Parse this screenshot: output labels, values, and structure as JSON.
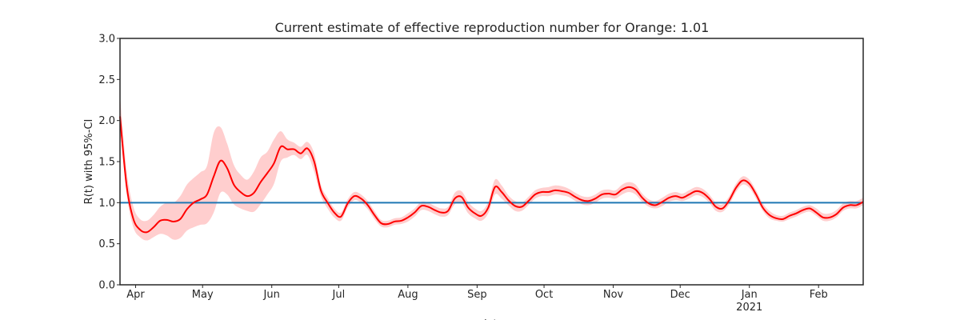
{
  "chart_data": {
    "type": "line",
    "title": "Current estimate of effective reproduction number for Orange: 1.01",
    "xlabel": "date",
    "ylabel": "R(t) with 95%-CI",
    "ylim": [
      0,
      3
    ],
    "xlim": [
      "2020-03-25",
      "2021-02-21"
    ],
    "yticks": [
      "0.0",
      "0.5",
      "1.0",
      "1.5",
      "2.0",
      "2.5",
      "3.0"
    ],
    "xticks": [
      {
        "date": "2020-04-01",
        "label": "Apr"
      },
      {
        "date": "2020-05-01",
        "label": "May"
      },
      {
        "date": "2020-06-01",
        "label": "Jun"
      },
      {
        "date": "2020-07-01",
        "label": "Jul"
      },
      {
        "date": "2020-08-01",
        "label": "Aug"
      },
      {
        "date": "2020-09-01",
        "label": "Sep"
      },
      {
        "date": "2020-10-01",
        "label": "Oct"
      },
      {
        "date": "2020-11-01",
        "label": "Nov"
      },
      {
        "date": "2020-12-01",
        "label": "Dec"
      },
      {
        "date": "2021-01-01",
        "label": "Jan",
        "sublabel": "2021"
      },
      {
        "date": "2021-02-01",
        "label": "Feb"
      }
    ],
    "reference_line": {
      "y": 1.0,
      "color": "#1f77b4"
    },
    "colors": {
      "series": "#ff0000",
      "band": "#ffbdbd",
      "axes": "#262626"
    },
    "grid": false,
    "series": [
      {
        "x": [
          "2020-03-25",
          "2020-03-28",
          "2020-03-31",
          "2020-04-03",
          "2020-04-06",
          "2020-04-09",
          "2020-04-12",
          "2020-04-15",
          "2020-04-18",
          "2020-04-21",
          "2020-04-24",
          "2020-04-27",
          "2020-04-30",
          "2020-05-03",
          "2020-05-06",
          "2020-05-09",
          "2020-05-12",
          "2020-05-15",
          "2020-05-18",
          "2020-05-21",
          "2020-05-24",
          "2020-05-27",
          "2020-05-30",
          "2020-06-02",
          "2020-06-05",
          "2020-06-08",
          "2020-06-11",
          "2020-06-14",
          "2020-06-17",
          "2020-06-20",
          "2020-06-23",
          "2020-06-26",
          "2020-06-29",
          "2020-07-02",
          "2020-07-05",
          "2020-07-08",
          "2020-07-11",
          "2020-07-14",
          "2020-07-17",
          "2020-07-20",
          "2020-07-23",
          "2020-07-26",
          "2020-07-29",
          "2020-08-01",
          "2020-08-04",
          "2020-08-07",
          "2020-08-10",
          "2020-08-13",
          "2020-08-16",
          "2020-08-19",
          "2020-08-22",
          "2020-08-25",
          "2020-08-28",
          "2020-08-31",
          "2020-09-03",
          "2020-09-06",
          "2020-09-09",
          "2020-09-12",
          "2020-09-15",
          "2020-09-18",
          "2020-09-21",
          "2020-09-24",
          "2020-09-27",
          "2020-09-30",
          "2020-10-03",
          "2020-10-06",
          "2020-10-09",
          "2020-10-12",
          "2020-10-15",
          "2020-10-18",
          "2020-10-21",
          "2020-10-24",
          "2020-10-27",
          "2020-10-30",
          "2020-11-02",
          "2020-11-05",
          "2020-11-08",
          "2020-11-11",
          "2020-11-14",
          "2020-11-17",
          "2020-11-20",
          "2020-11-23",
          "2020-11-26",
          "2020-11-29",
          "2020-12-02",
          "2020-12-05",
          "2020-12-08",
          "2020-12-11",
          "2020-12-14",
          "2020-12-17",
          "2020-12-20",
          "2020-12-23",
          "2020-12-26",
          "2020-12-29",
          "2021-01-01",
          "2021-01-04",
          "2021-01-07",
          "2021-01-10",
          "2021-01-13",
          "2021-01-16",
          "2021-01-19",
          "2021-01-22",
          "2021-01-25",
          "2021-01-28",
          "2021-01-31",
          "2021-02-03",
          "2021-02-06",
          "2021-02-09",
          "2021-02-12",
          "2021-02-15",
          "2021-02-18",
          "2021-02-21"
        ],
        "y": [
          2.05,
          1.2,
          0.8,
          0.67,
          0.64,
          0.7,
          0.78,
          0.79,
          0.77,
          0.8,
          0.92,
          1.0,
          1.04,
          1.1,
          1.32,
          1.51,
          1.42,
          1.22,
          1.13,
          1.08,
          1.12,
          1.25,
          1.36,
          1.48,
          1.68,
          1.65,
          1.65,
          1.6,
          1.66,
          1.5,
          1.15,
          1.0,
          0.88,
          0.83,
          0.99,
          1.08,
          1.05,
          0.97,
          0.85,
          0.75,
          0.74,
          0.77,
          0.78,
          0.82,
          0.88,
          0.96,
          0.95,
          0.91,
          0.88,
          0.9,
          1.05,
          1.07,
          0.94,
          0.87,
          0.84,
          0.94,
          1.19,
          1.13,
          1.03,
          0.96,
          0.95,
          1.02,
          1.1,
          1.13,
          1.13,
          1.15,
          1.14,
          1.12,
          1.07,
          1.03,
          1.02,
          1.05,
          1.1,
          1.11,
          1.1,
          1.16,
          1.19,
          1.16,
          1.06,
          0.99,
          0.97,
          1.01,
          1.06,
          1.08,
          1.06,
          1.1,
          1.14,
          1.12,
          1.05,
          0.95,
          0.93,
          1.03,
          1.18,
          1.27,
          1.23,
          1.1,
          0.94,
          0.85,
          0.81,
          0.8,
          0.84,
          0.87,
          0.91,
          0.93,
          0.88,
          0.82,
          0.82,
          0.86,
          0.94,
          0.97,
          0.97,
          1.01
        ],
        "lower": [
          1.95,
          1.1,
          0.7,
          0.58,
          0.54,
          0.58,
          0.62,
          0.6,
          0.55,
          0.57,
          0.66,
          0.7,
          0.73,
          0.75,
          0.88,
          1.12,
          1.1,
          0.98,
          0.93,
          0.9,
          0.89,
          0.98,
          1.1,
          1.23,
          1.5,
          1.55,
          1.58,
          1.53,
          1.58,
          1.38,
          1.08,
          0.93,
          0.82,
          0.78,
          0.94,
          1.03,
          1.0,
          0.92,
          0.8,
          0.71,
          0.7,
          0.73,
          0.74,
          0.77,
          0.83,
          0.91,
          0.9,
          0.86,
          0.83,
          0.85,
          0.98,
          1.0,
          0.87,
          0.81,
          0.78,
          0.87,
          1.1,
          1.05,
          0.97,
          0.9,
          0.9,
          0.97,
          1.05,
          1.08,
          1.08,
          1.1,
          1.09,
          1.07,
          1.02,
          0.98,
          0.97,
          1.0,
          1.05,
          1.06,
          1.05,
          1.1,
          1.13,
          1.1,
          1.01,
          0.95,
          0.93,
          0.96,
          1.01,
          1.03,
          1.02,
          1.05,
          1.09,
          1.07,
          1.0,
          0.9,
          0.89,
          0.98,
          1.13,
          1.22,
          1.18,
          1.05,
          0.9,
          0.81,
          0.78,
          0.77,
          0.8,
          0.83,
          0.87,
          0.89,
          0.84,
          0.78,
          0.78,
          0.82,
          0.9,
          0.93,
          0.93,
          0.97
        ],
        "upper": [
          2.3,
          1.38,
          0.95,
          0.8,
          0.78,
          0.85,
          0.95,
          1.0,
          1.0,
          1.08,
          1.22,
          1.3,
          1.37,
          1.45,
          1.85,
          1.92,
          1.72,
          1.46,
          1.34,
          1.28,
          1.38,
          1.55,
          1.62,
          1.77,
          1.87,
          1.77,
          1.73,
          1.68,
          1.74,
          1.6,
          1.22,
          1.06,
          0.93,
          0.88,
          1.04,
          1.13,
          1.1,
          1.02,
          0.9,
          0.79,
          0.78,
          0.81,
          0.82,
          0.87,
          0.93,
          1.01,
          1.0,
          0.96,
          0.93,
          0.95,
          1.12,
          1.14,
          1.01,
          0.93,
          0.9,
          1.01,
          1.28,
          1.21,
          1.09,
          1.02,
          1.0,
          1.07,
          1.15,
          1.18,
          1.19,
          1.21,
          1.2,
          1.17,
          1.12,
          1.08,
          1.07,
          1.1,
          1.15,
          1.16,
          1.15,
          1.22,
          1.25,
          1.22,
          1.11,
          1.04,
          1.02,
          1.06,
          1.11,
          1.13,
          1.11,
          1.15,
          1.19,
          1.17,
          1.1,
          1.0,
          0.98,
          1.08,
          1.23,
          1.32,
          1.28,
          1.15,
          0.99,
          0.9,
          0.85,
          0.84,
          0.88,
          0.91,
          0.95,
          0.97,
          0.93,
          0.87,
          0.87,
          0.91,
          0.99,
          1.02,
          1.02,
          1.06
        ]
      }
    ]
  }
}
